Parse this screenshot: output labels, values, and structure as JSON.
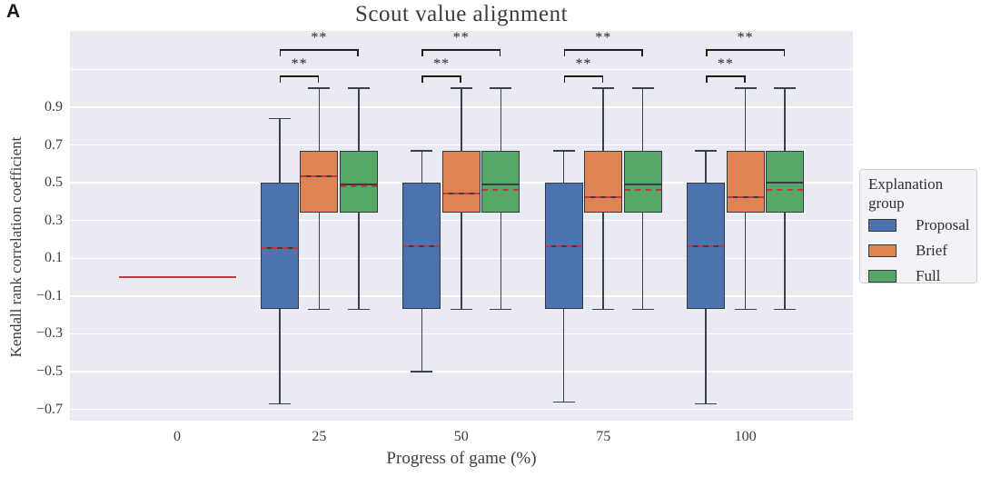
{
  "panel_label": "A",
  "title": "Scout value alignment",
  "axes": {
    "y_label": "Kendall rank correlation coefficient",
    "x_label": "Progress of game (%)",
    "y_ticks": [
      "0.9",
      "0.7",
      "0.5",
      "0.3",
      "0.1",
      "−0.1",
      "−0.3",
      "−0.5",
      "−0.7"
    ],
    "y_tick_values": [
      0.9,
      0.7,
      0.5,
      0.3,
      0.1,
      -0.1,
      -0.3,
      -0.5,
      -0.7
    ],
    "x_ticks": [
      "0",
      "25",
      "50",
      "75",
      "100"
    ]
  },
  "legend": {
    "title_lines": [
      "Explanation",
      "group"
    ],
    "items": [
      {
        "label": "Proposal",
        "color": "#4C72B0"
      },
      {
        "label": "Brief",
        "color": "#DD8452"
      },
      {
        "label": "Full",
        "color": "#55A868"
      }
    ]
  },
  "colors": {
    "plot_background": "#eaeaf2",
    "gridline": "#ffffff",
    "box_edge": "#343840",
    "whisker": "#3c4048",
    "median": "#3a3d45",
    "mean_dashed": "#c83737",
    "zero_line": "#b84040",
    "proposal": "#4C72B0",
    "brief": "#DD8452",
    "full": "#55A868"
  },
  "chart_data": {
    "type": "boxplot",
    "title": "Scout value alignment",
    "xlabel": "Progress of game (%)",
    "ylabel": "Kendall rank correlation coefficient",
    "categories": [
      "0",
      "25",
      "50",
      "75",
      "100"
    ],
    "y_tick_values": [
      0.9,
      0.7,
      0.5,
      0.3,
      0.1,
      -0.1,
      -0.3,
      -0.5,
      -0.7
    ],
    "grid": true,
    "legend_position": "right",
    "mean_line_style": "red-dashed",
    "series": [
      {
        "name": "Proposal",
        "color": "#4C72B0",
        "boxes": [
          {
            "collapsed": true,
            "value": 0.0
          },
          {
            "whisker_low": -0.67,
            "q1": -0.17,
            "median": 0.15,
            "mean": 0.15,
            "q3": 0.5,
            "whisker_high": 0.84
          },
          {
            "whisker_low": -0.5,
            "q1": -0.17,
            "median": 0.16,
            "mean": 0.16,
            "q3": 0.5,
            "whisker_high": 0.67
          },
          {
            "whisker_low": -0.66,
            "q1": -0.17,
            "median": 0.16,
            "mean": 0.16,
            "q3": 0.5,
            "whisker_high": 0.67
          },
          {
            "whisker_low": -0.67,
            "q1": -0.17,
            "median": 0.16,
            "mean": 0.16,
            "q3": 0.5,
            "whisker_high": 0.67
          }
        ]
      },
      {
        "name": "Brief",
        "color": "#DD8452",
        "boxes": [
          {
            "collapsed": true,
            "value": 0.0
          },
          {
            "whisker_low": -0.17,
            "q1": 0.34,
            "median": 0.53,
            "mean": 0.53,
            "q3": 0.67,
            "whisker_high": 1.0
          },
          {
            "whisker_low": -0.17,
            "q1": 0.34,
            "median": 0.44,
            "mean": 0.44,
            "q3": 0.67,
            "whisker_high": 1.0
          },
          {
            "whisker_low": -0.17,
            "q1": 0.34,
            "median": 0.42,
            "mean": 0.42,
            "q3": 0.67,
            "whisker_high": 1.0
          },
          {
            "whisker_low": -0.17,
            "q1": 0.34,
            "median": 0.42,
            "mean": 0.42,
            "q3": 0.67,
            "whisker_high": 1.0
          }
        ]
      },
      {
        "name": "Full",
        "color": "#55A868",
        "boxes": [
          {
            "collapsed": true,
            "value": 0.0
          },
          {
            "whisker_low": -0.17,
            "q1": 0.34,
            "median": 0.49,
            "mean": 0.48,
            "q3": 0.67,
            "whisker_high": 1.0
          },
          {
            "whisker_low": -0.17,
            "q1": 0.34,
            "median": 0.49,
            "mean": 0.46,
            "q3": 0.67,
            "whisker_high": 1.0
          },
          {
            "whisker_low": -0.17,
            "q1": 0.34,
            "median": 0.49,
            "mean": 0.46,
            "q3": 0.67,
            "whisker_high": 1.0
          },
          {
            "whisker_low": -0.17,
            "q1": 0.34,
            "median": 0.5,
            "mean": 0.46,
            "q3": 0.67,
            "whisker_high": 1.0
          }
        ]
      }
    ],
    "significance": [
      {
        "category": "25",
        "comparisons": [
          {
            "from": "Proposal",
            "to": "Brief",
            "label": "**"
          },
          {
            "from": "Proposal",
            "to": "Full",
            "label": "**"
          }
        ]
      },
      {
        "category": "50",
        "comparisons": [
          {
            "from": "Proposal",
            "to": "Brief",
            "label": "**"
          },
          {
            "from": "Proposal",
            "to": "Full",
            "label": "**"
          }
        ]
      },
      {
        "category": "75",
        "comparisons": [
          {
            "from": "Proposal",
            "to": "Brief",
            "label": "**"
          },
          {
            "from": "Proposal",
            "to": "Full",
            "label": "**"
          }
        ]
      },
      {
        "category": "100",
        "comparisons": [
          {
            "from": "Proposal",
            "to": "Brief",
            "label": "**"
          },
          {
            "from": "Proposal",
            "to": "Full",
            "label": "**"
          }
        ]
      }
    ]
  }
}
